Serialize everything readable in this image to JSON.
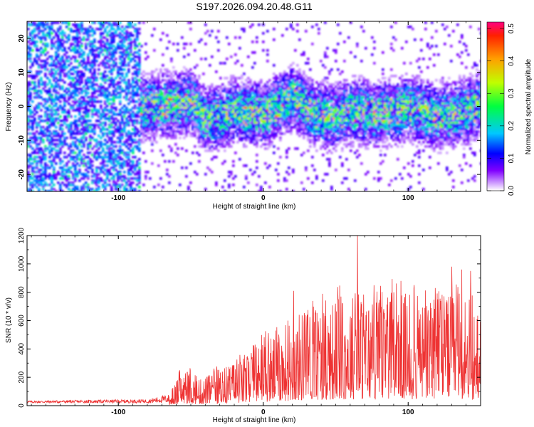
{
  "title": "S197.2026.094.20.48.G11",
  "chart_data": [
    {
      "type": "heatmap",
      "name": "spectrogram",
      "xlabel": "Height of straight line (km)",
      "ylabel": "Frequency (Hz)",
      "xlim": [
        -163,
        150
      ],
      "ylim": [
        -25,
        25
      ],
      "xticks": [
        -100,
        0,
        100
      ],
      "xtick_labels": [
        "-100",
        "0",
        "100"
      ],
      "yticks": [
        20,
        10,
        0,
        -10,
        -20
      ],
      "ytick_labels": [
        "20",
        "10",
        "0",
        "-10",
        "-20"
      ],
      "colorbar": {
        "label": "Normalized spectral amplitude",
        "range": [
          0,
          0.52
        ],
        "ticks": [
          0.0,
          0.1,
          0.2,
          0.3,
          0.4,
          0.5
        ],
        "tick_labels": [
          "0.0",
          "0.1",
          "0.2",
          "0.3",
          "0.4",
          "0.5"
        ]
      },
      "noise_region_x": [
        -163,
        -85
      ],
      "signal_band": {
        "x": [
          -85,
          -60,
          -50,
          -40,
          -20,
          0,
          20,
          35,
          45,
          60,
          80,
          100,
          120,
          140,
          150
        ],
        "center_hz": [
          0,
          1,
          2,
          -4,
          -1,
          -2,
          3,
          -2,
          -3,
          -1,
          -2,
          0,
          -3,
          -1,
          1
        ]
      }
    },
    {
      "type": "line",
      "name": "snr",
      "xlabel": "Height of straight line (km)",
      "ylabel": "SNR (10 * v/v)",
      "xlim": [
        -163,
        150
      ],
      "ylim": [
        0,
        1200
      ],
      "xticks": [
        -100,
        0,
        100
      ],
      "xtick_labels": [
        "-100",
        "0",
        "100"
      ],
      "yticks": [
        0,
        200,
        400,
        600,
        800,
        1000,
        1200
      ],
      "ytick_labels": [
        "0",
        "200",
        "400",
        "600",
        "800",
        "1000",
        "1200"
      ],
      "series": [
        {
          "name": "SNR",
          "color": "#ee3333",
          "envelope_x": [
            -163,
            -80,
            -65,
            -58,
            -50,
            -45,
            -40,
            -30,
            -20,
            -10,
            0,
            10,
            20,
            30,
            40,
            50,
            60,
            70,
            80,
            90,
            100,
            110,
            120,
            130,
            140,
            150
          ],
          "envelope_max": [
            35,
            45,
            80,
            250,
            270,
            200,
            230,
            300,
            350,
            400,
            520,
            600,
            700,
            780,
            820,
            850,
            900,
            880,
            850,
            900,
            880,
            850,
            900,
            880,
            950,
            700
          ],
          "peaks": [
            [
              65,
              1200
            ],
            [
              95,
              880
            ],
            [
              90,
              800
            ],
            [
              130,
              980
            ],
            [
              137,
              960
            ],
            [
              143,
              950
            ],
            [
              21,
              810
            ]
          ]
        }
      ]
    }
  ]
}
